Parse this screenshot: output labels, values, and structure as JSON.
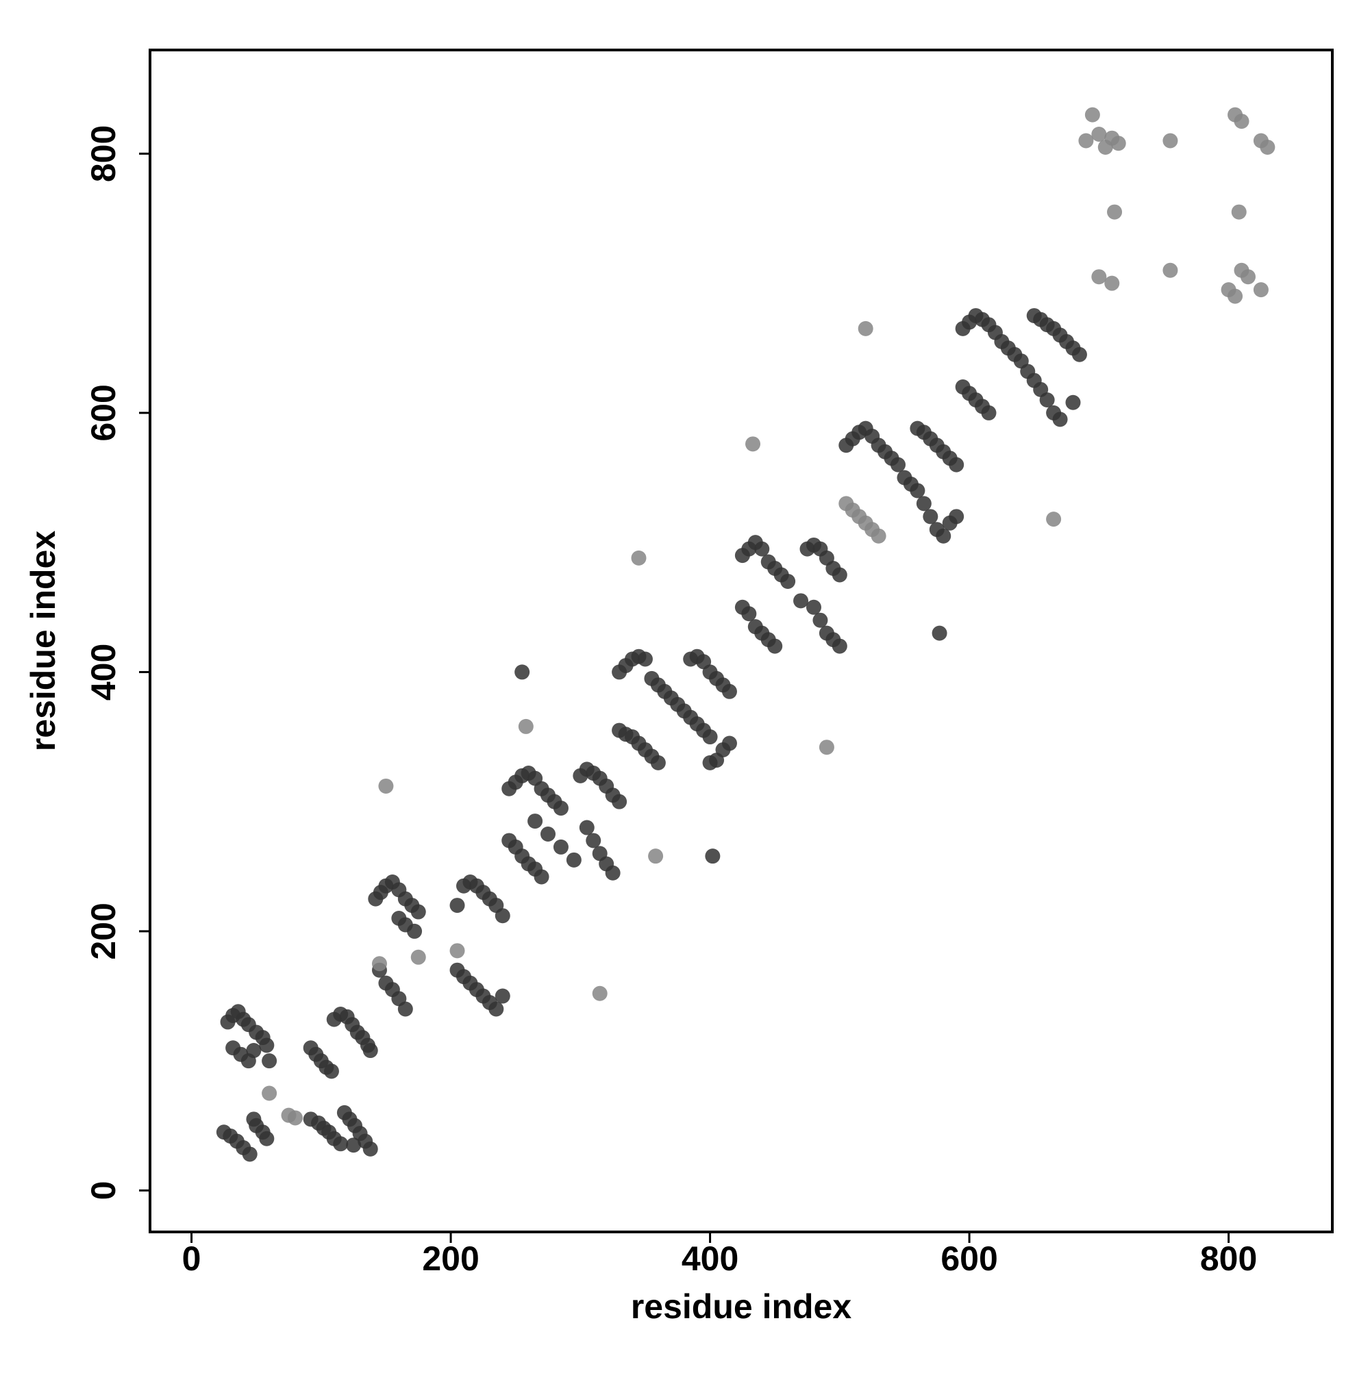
{
  "chart_data": {
    "type": "scatter",
    "xlabel": "residue index",
    "ylabel": "residue index",
    "xlim": [
      -32,
      880
    ],
    "ylim": [
      -32,
      880
    ],
    "xticks": [
      0,
      200,
      400,
      600,
      800
    ],
    "yticks": [
      0,
      200,
      400,
      600,
      800
    ],
    "series": [
      {
        "color": "#333333",
        "x": [
          25,
          30,
          35,
          40,
          45,
          48,
          50,
          55,
          58,
          28,
          32,
          36,
          40,
          44,
          32,
          38,
          44,
          50,
          55,
          58,
          60,
          48,
          92,
          98,
          102,
          106,
          110,
          115,
          118,
          122,
          126,
          130,
          134,
          138,
          125,
          92,
          96,
          100,
          104,
          108,
          110,
          115,
          120,
          124,
          128,
          132,
          136,
          138,
          142,
          146,
          150,
          155,
          160,
          165,
          170,
          175,
          160,
          165,
          172,
          145,
          150,
          155,
          160,
          165,
          205,
          210,
          215,
          220,
          225,
          230,
          235,
          240,
          205,
          210,
          215,
          220,
          225,
          230,
          235,
          240,
          245,
          250,
          255,
          260,
          265,
          270,
          275,
          280,
          285,
          265,
          275,
          285,
          295,
          245,
          250,
          255,
          260,
          265,
          270,
          300,
          305,
          310,
          315,
          320,
          325,
          330,
          305,
          310,
          315,
          320,
          325,
          330,
          335,
          340,
          345,
          350,
          355,
          360,
          365,
          370,
          375,
          380,
          385,
          390,
          395,
          400,
          330,
          335,
          340,
          345,
          350,
          355,
          360,
          385,
          390,
          395,
          400,
          405,
          410,
          415,
          400,
          405,
          410,
          415,
          425,
          430,
          435,
          440,
          445,
          450,
          455,
          460,
          425,
          430,
          435,
          440,
          445,
          450,
          470,
          480,
          485,
          490,
          495,
          500,
          475,
          480,
          485,
          490,
          495,
          500,
          505,
          510,
          515,
          520,
          525,
          530,
          535,
          540,
          545,
          550,
          555,
          560,
          565,
          570,
          575,
          580,
          560,
          565,
          570,
          575,
          580,
          585,
          590,
          590,
          585,
          595,
          600,
          605,
          610,
          615,
          620,
          625,
          630,
          635,
          640,
          645,
          650,
          655,
          660,
          665,
          670,
          595,
          600,
          605,
          610,
          615,
          650,
          655,
          660,
          665,
          670,
          675,
          680,
          685,
          680,
          255,
          402,
          577
        ],
        "values": [
          45,
          42,
          38,
          33,
          28,
          55,
          50,
          45,
          40,
          130,
          135,
          138,
          132,
          128,
          110,
          105,
          100,
          122,
          118,
          112,
          100,
          108,
          55,
          52,
          48,
          45,
          40,
          36,
          60,
          55,
          50,
          44,
          38,
          32,
          35,
          110,
          105,
          100,
          95,
          92,
          132,
          136,
          134,
          128,
          122,
          118,
          112,
          108,
          225,
          230,
          235,
          238,
          232,
          225,
          220,
          215,
          210,
          205,
          200,
          170,
          160,
          155,
          148,
          140,
          220,
          235,
          238,
          235,
          230,
          225,
          220,
          212,
          170,
          165,
          160,
          155,
          150,
          145,
          140,
          150,
          310,
          315,
          320,
          322,
          318,
          310,
          305,
          300,
          295,
          285,
          275,
          265,
          255,
          270,
          265,
          258,
          252,
          248,
          242,
          320,
          325,
          322,
          318,
          312,
          305,
          300,
          280,
          270,
          260,
          252,
          245,
          400,
          405,
          410,
          412,
          410,
          395,
          390,
          385,
          380,
          375,
          370,
          365,
          360,
          355,
          350,
          355,
          352,
          350,
          345,
          340,
          335,
          330,
          410,
          412,
          408,
          400,
          395,
          390,
          385,
          330,
          332,
          340,
          345,
          490,
          495,
          500,
          495,
          485,
          480,
          475,
          470,
          450,
          445,
          435,
          430,
          425,
          420,
          455,
          450,
          440,
          430,
          425,
          420,
          495,
          498,
          495,
          488,
          480,
          475,
          575,
          580,
          585,
          588,
          582,
          575,
          570,
          565,
          560,
          550,
          545,
          540,
          530,
          520,
          510,
          505,
          588,
          585,
          580,
          575,
          570,
          565,
          560,
          520,
          515,
          665,
          670,
          675,
          672,
          668,
          662,
          655,
          650,
          645,
          640,
          632,
          625,
          618,
          610,
          600,
          595,
          620,
          615,
          610,
          605,
          600,
          675,
          672,
          668,
          665,
          660,
          655,
          650,
          645,
          608,
          400,
          258,
          430
        ]
      },
      {
        "color": "#858585",
        "x": [
          60,
          75,
          80,
          150,
          258,
          315,
          358,
          345,
          205,
          505,
          510,
          515,
          520,
          525,
          530,
          145,
          175,
          690,
          695,
          700,
          705,
          710,
          715,
          712,
          700,
          710,
          755,
          755,
          800,
          805,
          810,
          815,
          825,
          808,
          805,
          810,
          825,
          830,
          520,
          433,
          490,
          665
        ],
        "values": [
          75,
          58,
          56,
          312,
          358,
          152,
          258,
          488,
          185,
          530,
          525,
          520,
          515,
          510,
          505,
          175,
          180,
          810,
          830,
          815,
          805,
          812,
          808,
          755,
          705,
          700,
          810,
          710,
          695,
          690,
          710,
          705,
          695,
          755,
          830,
          825,
          810,
          805,
          665,
          576,
          342,
          518
        ]
      }
    ]
  }
}
